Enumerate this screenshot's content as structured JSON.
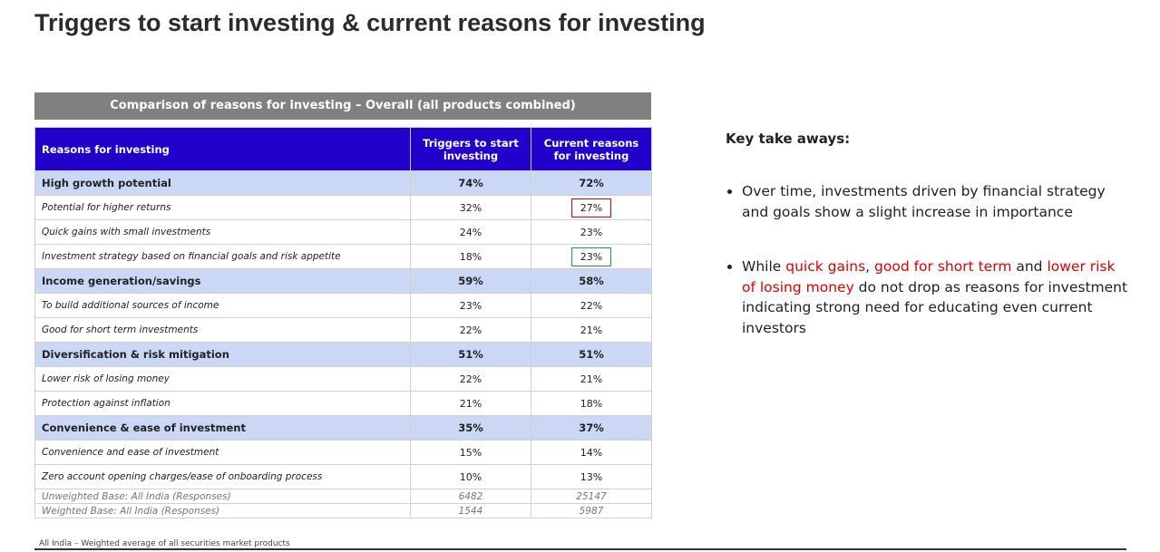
{
  "header": {
    "title": "Triggers to start investing & current reasons for investing"
  },
  "table": {
    "caption": "Comparison of reasons for investing – Overall (all products combined)",
    "columns": [
      "Reasons for investing",
      "Triggers to start investing",
      "Current reasons for investing"
    ],
    "groups": [
      {
        "label": "High growth potential",
        "triggers": "74%",
        "current": "72%",
        "items": [
          {
            "label": "Potential for higher returns",
            "triggers": "32%",
            "current": "27%",
            "current_outline": "#d0021b"
          },
          {
            "label": "Quick gains with small investments",
            "triggers": "24%",
            "current": "23%"
          },
          {
            "label": "Investment strategy based on financial goals and risk appetite",
            "triggers": "18%",
            "current": "23%",
            "current_outline": "#1a9e4b"
          }
        ]
      },
      {
        "label": "Income generation/savings",
        "triggers": "59%",
        "current": "58%",
        "items": [
          {
            "label": "To build additional sources of income",
            "triggers": "23%",
            "current": "22%"
          },
          {
            "label": "Good for short term investments",
            "triggers": "22%",
            "current": "21%"
          }
        ]
      },
      {
        "label": "Diversification & risk mitigation",
        "triggers": "51%",
        "current": "51%",
        "items": [
          {
            "label": "Lower risk of losing money",
            "triggers": "22%",
            "current": "21%"
          },
          {
            "label": "Protection against inflation",
            "triggers": "21%",
            "current": "18%"
          }
        ]
      },
      {
        "label": "Convenience & ease of investment",
        "triggers": "35%",
        "current": "37%",
        "items": [
          {
            "label": "Convenience and ease of investment",
            "triggers": "15%",
            "current": "14%"
          },
          {
            "label": "Zero account opening charges/ease of onboarding process",
            "triggers": "10%",
            "current": "13%"
          }
        ]
      }
    ],
    "bases": [
      {
        "label": "Unweighted Base: All India (Responses)",
        "triggers": "6482",
        "current": "25147"
      },
      {
        "label": "Weighted Base: All India (Responses)",
        "triggers": "1544",
        "current": "5987"
      }
    ]
  },
  "takeaways": {
    "title": "Key take aways:",
    "bullets": [
      [
        {
          "text": "Over time, investments driven by financial strategy and goals show a slight increase in importance"
        }
      ],
      [
        {
          "text": "While "
        },
        {
          "text": "quick gains",
          "color": "#e00000"
        },
        {
          "text": ", "
        },
        {
          "text": "good for short term",
          "color": "#e00000"
        },
        {
          "text": " and "
        },
        {
          "text": "lower risk of losing money",
          "color": "#e00000"
        },
        {
          "text": " do not drop as reasons for investment indicating strong need for educating even current investors"
        }
      ]
    ]
  },
  "footnote": "All India – Weighted average of all securities market products"
}
